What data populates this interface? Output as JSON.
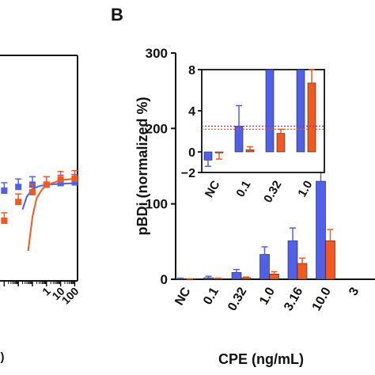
{
  "colors": {
    "blue": "#5060e8",
    "orange": "#f05a20",
    "axis": "#111111",
    "dotted_line": "#8a3a8a"
  },
  "chart_data": [
    {
      "id": "panel-a",
      "type": "line",
      "panel_label": "",
      "title": "",
      "xlabel": "",
      "ylabel": "",
      "x_scale": "log",
      "xtick_labels": [
        "1",
        "10",
        "100"
      ],
      "series": [
        {
          "color": "blue",
          "points": [
            [
              0.001,
              120
            ],
            [
              0.01,
              125
            ],
            [
              0.1,
              128
            ],
            [
              1,
              128
            ],
            [
              10,
              130
            ],
            [
              100,
              131
            ]
          ]
        },
        {
          "color": "orange",
          "points": [
            [
              0.001,
              80
            ],
            [
              0.01,
              105
            ],
            [
              0.1,
              118
            ],
            [
              1,
              128
            ],
            [
              10,
              135
            ],
            [
              100,
              136
            ]
          ]
        }
      ],
      "fit_curves": [
        {
          "color": "blue",
          "points": [
            [
              0.02,
              95
            ],
            [
              0.04,
              112
            ],
            [
              0.1,
              122
            ],
            [
              0.3,
              126
            ],
            [
              1,
              128
            ],
            [
              10,
              129
            ],
            [
              100,
              130
            ]
          ]
        },
        {
          "color": "orange",
          "points": [
            [
              0.05,
              40
            ],
            [
              0.1,
              85
            ],
            [
              0.2,
              110
            ],
            [
              0.5,
              122
            ],
            [
              1,
              127
            ],
            [
              10,
              134
            ],
            [
              100,
              136
            ]
          ]
        }
      ]
    },
    {
      "id": "panel-b",
      "type": "bar",
      "panel_label": "B",
      "title": "",
      "xlabel": "CPE (ng/mL)",
      "ylabel": "pBDi (normalized %)",
      "ylim": [
        0,
        300
      ],
      "yticks": [
        "0",
        "100",
        "200",
        "300"
      ],
      "categories": [
        "NC",
        "0.1",
        "0.32",
        "1.0",
        "3.16",
        "10.0",
        "3"
      ],
      "series": [
        {
          "color": "blue",
          "values": [
            0.5,
            2,
            9,
            33,
            51,
            130,
            null
          ],
          "errors": [
            1,
            2,
            4,
            10,
            17,
            22,
            null
          ]
        },
        {
          "color": "orange",
          "values": [
            0.2,
            1,
            2,
            7,
            21,
            51,
            null
          ],
          "errors": [
            0.5,
            0.5,
            1,
            3,
            7,
            15,
            null
          ]
        }
      ]
    },
    {
      "id": "panel-b-inset",
      "type": "bar",
      "title": "",
      "xlabel": "",
      "ylabel": "",
      "ylim": [
        -2,
        8
      ],
      "yticks": [
        "−2",
        "0",
        "4",
        "8"
      ],
      "categories": [
        "NC",
        "0.1",
        "0.32",
        "1.0"
      ],
      "reference_lines": [
        2.2,
        2.5
      ],
      "series": [
        {
          "color": "blue",
          "values": [
            -0.8,
            2.5,
            8,
            8
          ],
          "errors": [
            0.6,
            2.0,
            0,
            0
          ]
        },
        {
          "color": "orange",
          "values": [
            -0.1,
            0.2,
            1.8,
            6.7
          ],
          "errors": [
            0.6,
            0.3,
            0.4,
            1.3
          ]
        }
      ]
    }
  ]
}
